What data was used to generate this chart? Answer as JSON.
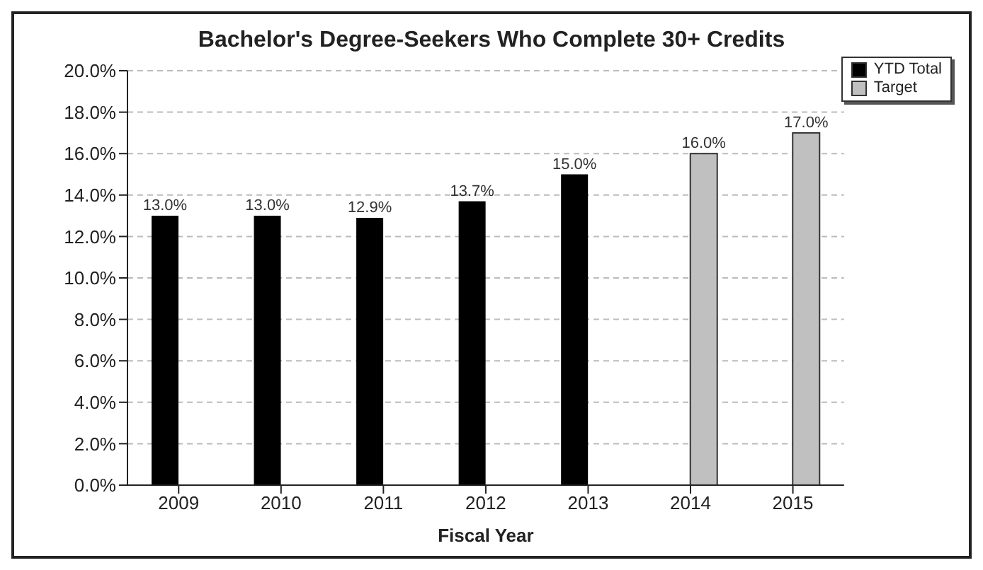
{
  "chart_data": {
    "type": "bar",
    "title": "Bachelor's Degree-Seekers Who Complete 30+ Credits",
    "xlabel": "Fiscal Year",
    "categories": [
      "2009",
      "2010",
      "2011",
      "2012",
      "2013",
      "2014",
      "2015"
    ],
    "series": [
      {
        "name": "YTD Total",
        "color": "#000000",
        "values": [
          13.0,
          13.0,
          12.9,
          13.7,
          15.0,
          null,
          null
        ],
        "value_labels": [
          "13.0%",
          "13.0%",
          "12.9%",
          "13.7%",
          "15.0%",
          null,
          null
        ]
      },
      {
        "name": "Target",
        "color": "#c0c0c0",
        "values": [
          null,
          null,
          null,
          null,
          null,
          16.0,
          17.0
        ],
        "value_labels": [
          null,
          null,
          null,
          null,
          null,
          "16.0%",
          "17.0%"
        ]
      }
    ],
    "ylim": [
      0,
      20
    ],
    "yticks": [
      {
        "value": 0,
        "label": "0.0%"
      },
      {
        "value": 2,
        "label": "2.0%"
      },
      {
        "value": 4,
        "label": "4.0%"
      },
      {
        "value": 6,
        "label": "6.0%"
      },
      {
        "value": 8,
        "label": "8.0%"
      },
      {
        "value": 10,
        "label": "10.0%"
      },
      {
        "value": 12,
        "label": "12.0%"
      },
      {
        "value": 14,
        "label": "14.0%"
      },
      {
        "value": 16,
        "label": "16.0%"
      },
      {
        "value": 18,
        "label": "18.0%"
      },
      {
        "value": 20,
        "label": "20.0%"
      }
    ],
    "grid": "y",
    "legend": "top right"
  }
}
